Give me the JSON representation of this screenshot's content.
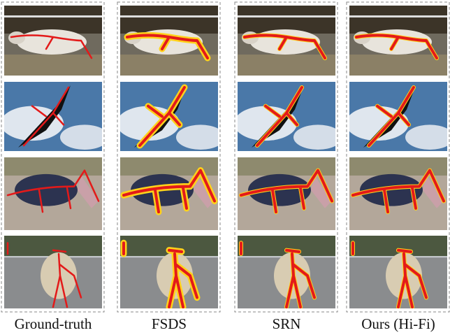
{
  "columns": [
    "Ground-truth",
    "FSDS",
    "SRN",
    "Ours (Hi-Fi)"
  ]
}
